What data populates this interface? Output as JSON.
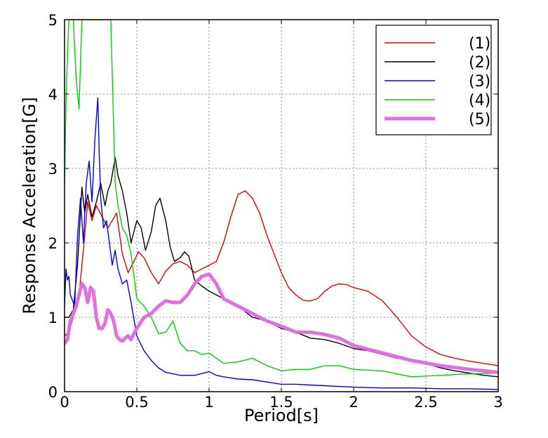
{
  "chart_data": {
    "type": "line",
    "title": "",
    "xlabel": "Period[s]",
    "ylabel": "Response Acceleration[G]",
    "xlim": [
      0,
      3
    ],
    "ylim": [
      0,
      5
    ],
    "xticks": [
      "0",
      "0.5",
      "1",
      "1.5",
      "2",
      "2.5",
      "3"
    ],
    "yticks": [
      "0",
      "1",
      "2",
      "3",
      "4",
      "5"
    ],
    "grid": true,
    "legend_position": "top-right",
    "series": [
      {
        "name": "(1)",
        "color": "#e00000",
        "x": [
          0,
          0.03,
          0.06,
          0.1,
          0.13,
          0.16,
          0.19,
          0.22,
          0.26,
          0.3,
          0.33,
          0.36,
          0.4,
          0.44,
          0.48,
          0.51,
          0.55,
          0.6,
          0.65,
          0.7,
          0.75,
          0.8,
          0.85,
          0.9,
          0.95,
          1.0,
          1.05,
          1.1,
          1.15,
          1.2,
          1.25,
          1.3,
          1.35,
          1.4,
          1.45,
          1.5,
          1.55,
          1.6,
          1.65,
          1.7,
          1.75,
          1.8,
          1.85,
          1.9,
          1.95,
          2.0,
          2.1,
          2.2,
          2.3,
          2.4,
          2.5,
          2.6,
          2.7,
          2.8,
          2.9,
          3.0
        ],
        "y": [
          0.75,
          0.8,
          1.0,
          1.3,
          1.9,
          2.55,
          2.3,
          2.5,
          2.35,
          2.2,
          2.3,
          2.4,
          1.85,
          1.6,
          1.75,
          1.88,
          1.8,
          1.6,
          1.45,
          1.62,
          1.72,
          1.75,
          1.7,
          1.6,
          1.65,
          1.7,
          1.75,
          2.0,
          2.35,
          2.65,
          2.7,
          2.6,
          2.4,
          2.1,
          1.85,
          1.6,
          1.4,
          1.3,
          1.23,
          1.22,
          1.25,
          1.35,
          1.42,
          1.45,
          1.44,
          1.4,
          1.35,
          1.22,
          1.0,
          0.75,
          0.6,
          0.5,
          0.45,
          0.41,
          0.38,
          0.35
        ]
      },
      {
        "name": "(2)",
        "color": "#000000",
        "x": [
          0,
          0.03,
          0.06,
          0.09,
          0.12,
          0.14,
          0.16,
          0.19,
          0.22,
          0.25,
          0.28,
          0.3,
          0.32,
          0.35,
          0.37,
          0.4,
          0.43,
          0.46,
          0.5,
          0.53,
          0.56,
          0.6,
          0.63,
          0.66,
          0.7,
          0.73,
          0.76,
          0.8,
          0.83,
          0.86,
          0.9,
          0.95,
          1.0,
          1.1,
          1.2,
          1.3,
          1.4,
          1.5,
          1.6,
          1.7,
          1.8,
          1.9,
          2.0,
          2.1,
          2.2,
          2.3,
          2.4,
          2.5,
          2.6,
          2.7,
          2.8,
          2.9,
          3.0
        ],
        "y": [
          1.0,
          1.0,
          1.1,
          1.7,
          2.75,
          2.4,
          2.65,
          2.35,
          2.55,
          2.8,
          2.5,
          2.7,
          2.8,
          3.15,
          2.9,
          2.7,
          2.4,
          2.0,
          2.3,
          2.2,
          1.9,
          2.15,
          2.5,
          2.6,
          2.3,
          1.95,
          1.75,
          1.8,
          1.88,
          1.82,
          1.5,
          1.42,
          1.35,
          1.25,
          1.15,
          1.0,
          0.95,
          0.85,
          0.8,
          0.72,
          0.7,
          0.65,
          0.58,
          0.55,
          0.5,
          0.45,
          0.42,
          0.38,
          0.32,
          0.28,
          0.25,
          0.22,
          0.2
        ]
      },
      {
        "name": "(3)",
        "color": "#0000e0",
        "x": [
          0,
          0.01,
          0.02,
          0.03,
          0.04,
          0.05,
          0.07,
          0.09,
          0.11,
          0.13,
          0.15,
          0.17,
          0.19,
          0.21,
          0.23,
          0.24,
          0.25,
          0.27,
          0.29,
          0.31,
          0.33,
          0.35,
          0.37,
          0.4,
          0.43,
          0.46,
          0.5,
          0.55,
          0.6,
          0.65,
          0.7,
          0.8,
          0.9,
          1.0,
          1.05,
          1.1,
          1.2,
          1.3,
          1.4,
          1.5,
          1.6,
          1.7,
          1.8,
          1.9,
          2.0,
          2.2,
          2.4,
          2.6,
          2.8,
          3.0
        ],
        "y": [
          1.15,
          1.65,
          1.5,
          1.55,
          1.3,
          1.25,
          1.15,
          2.1,
          2.6,
          2.0,
          2.8,
          3.1,
          2.55,
          3.4,
          3.95,
          3.2,
          2.6,
          2.2,
          2.3,
          2.0,
          1.7,
          1.9,
          1.65,
          1.45,
          1.5,
          1.2,
          0.75,
          0.55,
          0.42,
          0.32,
          0.26,
          0.22,
          0.22,
          0.27,
          0.22,
          0.2,
          0.17,
          0.16,
          0.13,
          0.1,
          0.1,
          0.09,
          0.08,
          0.07,
          0.06,
          0.05,
          0.05,
          0.04,
          0.04,
          0.03
        ]
      },
      {
        "name": "(4)",
        "color": "#00d000",
        "x": [
          0,
          0.01,
          0.02,
          0.03,
          0.04,
          0.06,
          0.08,
          0.1,
          0.12,
          0.14,
          0.17,
          0.2,
          0.23,
          0.26,
          0.29,
          0.32,
          0.35,
          0.37,
          0.4,
          0.43,
          0.46,
          0.5,
          0.55,
          0.6,
          0.65,
          0.7,
          0.75,
          0.8,
          0.85,
          0.9,
          0.95,
          1.0,
          1.05,
          1.1,
          1.2,
          1.3,
          1.4,
          1.5,
          1.6,
          1.7,
          1.8,
          1.9,
          2.0,
          2.2,
          2.4,
          2.6,
          2.8,
          3.0
        ],
        "y": [
          2.8,
          3.9,
          4.5,
          5.0,
          5.0,
          5.0,
          4.2,
          3.8,
          5.0,
          5.0,
          5.0,
          5.0,
          5.0,
          5.0,
          5.0,
          5.0,
          2.8,
          2.5,
          2.2,
          2.1,
          1.85,
          1.25,
          1.15,
          1.0,
          0.78,
          0.8,
          0.95,
          0.65,
          0.55,
          0.55,
          0.5,
          0.52,
          0.45,
          0.38,
          0.4,
          0.45,
          0.35,
          0.28,
          0.3,
          0.3,
          0.35,
          0.35,
          0.3,
          0.28,
          0.2,
          0.22,
          0.24,
          0.25
        ]
      },
      {
        "name": "(5)",
        "color": "#e070e0",
        "x": [
          0,
          0.02,
          0.04,
          0.06,
          0.08,
          0.1,
          0.12,
          0.14,
          0.16,
          0.18,
          0.2,
          0.22,
          0.24,
          0.26,
          0.28,
          0.3,
          0.32,
          0.34,
          0.36,
          0.38,
          0.4,
          0.42,
          0.44,
          0.46,
          0.48,
          0.5,
          0.55,
          0.6,
          0.65,
          0.7,
          0.75,
          0.8,
          0.85,
          0.9,
          0.95,
          1.0,
          1.05,
          1.1,
          1.2,
          1.3,
          1.4,
          1.5,
          1.6,
          1.7,
          1.8,
          1.9,
          2.0,
          2.2,
          2.4,
          2.6,
          2.8,
          3.0
        ],
        "y": [
          0.65,
          0.7,
          0.95,
          1.05,
          1.15,
          1.3,
          1.45,
          1.4,
          1.2,
          1.4,
          1.35,
          1.0,
          0.85,
          0.85,
          0.92,
          1.1,
          1.05,
          0.95,
          0.75,
          0.7,
          0.68,
          0.72,
          0.75,
          0.7,
          0.78,
          0.85,
          1.0,
          1.05,
          1.15,
          1.22,
          1.2,
          1.2,
          1.3,
          1.45,
          1.55,
          1.58,
          1.45,
          1.25,
          1.15,
          1.05,
          0.95,
          0.88,
          0.8,
          0.8,
          0.77,
          0.72,
          0.62,
          0.52,
          0.42,
          0.35,
          0.3,
          0.26
        ]
      }
    ]
  }
}
